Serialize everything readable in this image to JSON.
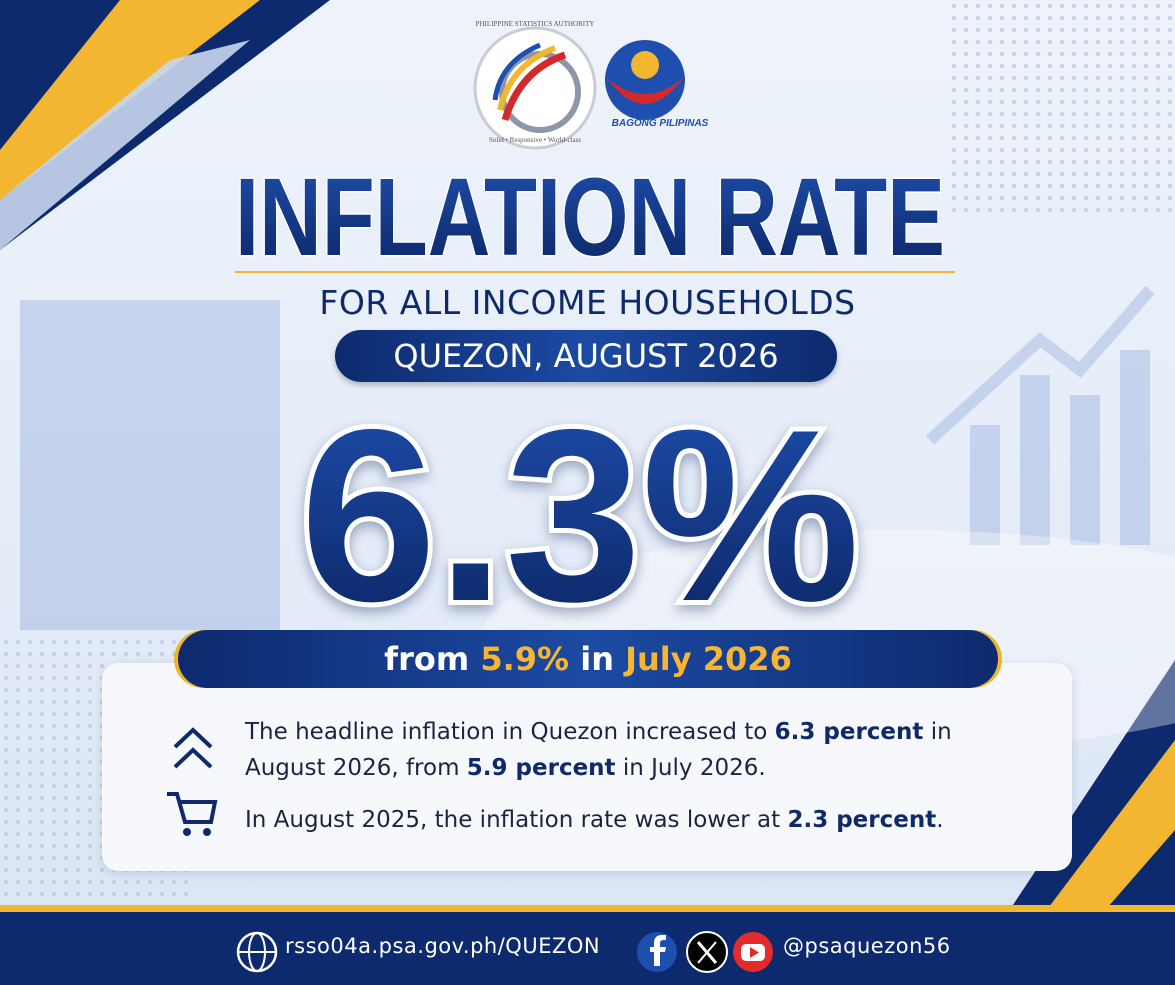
{
  "logos": {
    "psa_name": "PHILIPPINE STATISTICS AUTHORITY",
    "psa_motto": "Solid • Responsive • World-class",
    "bagong": "BAGONG PILIPINAS"
  },
  "header": {
    "title": "INFLATION RATE",
    "subtitle": "FOR ALL INCOME HOUSEHOLDS",
    "badge": "QUEZON, AUGUST 2026"
  },
  "headline": {
    "value": "6.3%",
    "from": [
      "from ",
      "5.9%",
      " in ",
      "July 2026"
    ]
  },
  "notes": [
    [
      "The headline inflation in Quezon increased to ",
      "6.3 percent",
      " in August 2026, from ",
      "5.9 percent",
      " in July 2026."
    ],
    [
      "In August 2025, the inflation rate was lower at ",
      "2.3 percent",
      "."
    ]
  ],
  "footer": {
    "website": "rsso04a.psa.gov.ph/QUEZON",
    "social": "@psaquezon56"
  }
}
